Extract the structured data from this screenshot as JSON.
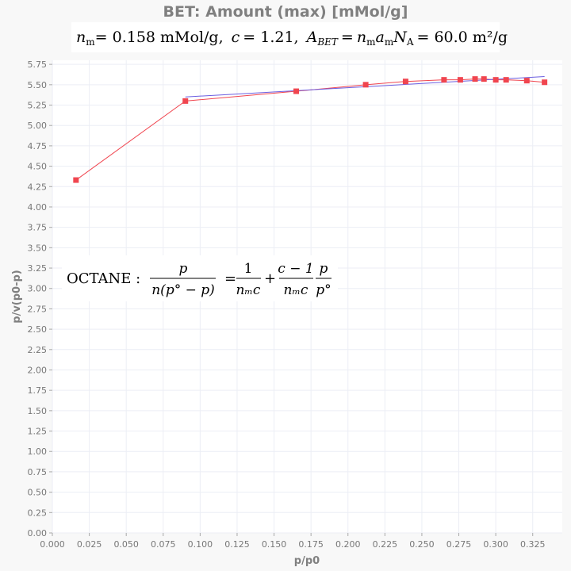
{
  "chart_data": {
    "type": "scatter",
    "title": "BET: Amount (max) [mMol/g]",
    "subtitle": {
      "nm_value": "= 0.158 mMol/g,",
      "c_value": "= 1.21,",
      "abet_value": "= 60.0 m²/g"
    },
    "annotation": {
      "label": "OCTANE :",
      "f1_num": "p",
      "f1_den": "n(p° − p)",
      "f2_num": "1",
      "f2_den": "nₘc",
      "f3_num": "c − 1",
      "f3_den": "nₘc",
      "f4_num": "p",
      "f4_den": "p°"
    },
    "xlabel": "p/p0",
    "ylabel": "p/v(p0-p)",
    "xlim": [
      0,
      0.345
    ],
    "ylim": [
      0,
      5.8
    ],
    "x_ticks": [
      "0.000",
      "0.025",
      "0.050",
      "0.075",
      "0.100",
      "0.125",
      "0.150",
      "0.175",
      "0.200",
      "0.225",
      "0.250",
      "0.275",
      "0.300",
      "0.325"
    ],
    "y_ticks": [
      "0.00",
      "0.25",
      "0.50",
      "0.75",
      "1.00",
      "1.25",
      "1.50",
      "1.75",
      "2.00",
      "2.25",
      "2.50",
      "2.75",
      "3.00",
      "3.25",
      "3.50",
      "3.75",
      "4.00",
      "4.25",
      "4.50",
      "4.75",
      "5.00",
      "5.25",
      "5.50",
      "5.75"
    ],
    "grid": true,
    "series": [
      {
        "color": "#f0454f",
        "x": [
          0.016,
          0.09,
          0.165,
          0.212,
          0.239,
          0.265,
          0.276,
          0.286,
          0.292,
          0.3,
          0.307,
          0.321,
          0.333
        ],
        "y": [
          4.33,
          5.3,
          5.42,
          5.5,
          5.54,
          5.56,
          5.56,
          5.57,
          5.57,
          5.56,
          5.56,
          5.55,
          5.53
        ]
      },
      {
        "color": "#6b5ee0",
        "x": [
          0.09,
          0.333
        ],
        "y": [
          5.35,
          5.6
        ]
      }
    ]
  }
}
